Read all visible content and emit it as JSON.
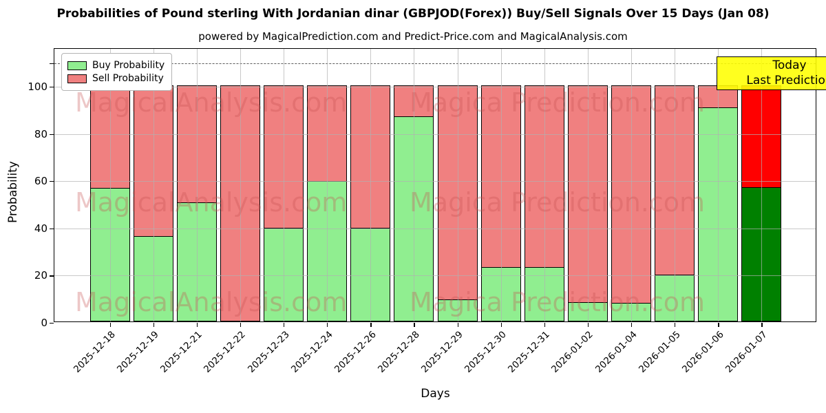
{
  "title": "Probabilities of Pound sterling With Jordanian dinar (GBPJOD(Forex)) Buy/Sell Signals Over 15 Days (Jan 08)",
  "subtitle": "powered by MagicalPrediction.com and Predict-Price.com and MagicalAnalysis.com",
  "legend": {
    "items": [
      {
        "label": "Buy Probability",
        "color": "#90EE90"
      },
      {
        "label": "Sell Probability",
        "color": "#F08080"
      }
    ]
  },
  "annotation_box": {
    "line1": "Today",
    "line2": "Last Prediction",
    "bg_color": "#FFFF00"
  },
  "watermarks": {
    "left_text": "MagicalAnalysis.com",
    "right_text": "Magica Prediction.com",
    "color": "#C75050"
  },
  "axes": {
    "xlabel": "Days",
    "ylabel": "Probability"
  },
  "colors": {
    "buy": "#90EE90",
    "sell": "#F08080",
    "today_buy": "#008000",
    "today_sell": "#FF0000",
    "bar_edge": "#000000",
    "grid": "#B0B0B0"
  },
  "chart_data": {
    "type": "bar",
    "stacked": true,
    "categories": [
      "2025-12-18",
      "2025-12-19",
      "2025-12-21",
      "2025-12-22",
      "2025-12-23",
      "2025-12-24",
      "2025-12-26",
      "2025-12-28",
      "2025-12-29",
      "2025-12-30",
      "2025-12-31",
      "2026-01-02",
      "2026-01-04",
      "2026-01-05",
      "2026-01-06",
      "2026-01-07"
    ],
    "series": [
      {
        "name": "Buy Probability",
        "values": [
          56.5,
          36,
          50.5,
          0,
          39.5,
          59.5,
          39.5,
          87,
          9,
          23,
          23,
          8,
          7.5,
          19.5,
          91,
          57
        ]
      },
      {
        "name": "Sell Probability",
        "values": [
          43.5,
          64,
          49.5,
          100,
          60.5,
          40.5,
          60.5,
          13,
          91,
          77,
          77,
          92,
          92.5,
          80.5,
          9,
          43
        ]
      }
    ],
    "today_bar_category": "2026-01-07",
    "title": "Probabilities of Pound sterling With Jordanian dinar (GBPJOD(Forex)) Buy/Sell Signals Over 15 Days (Jan 08)",
    "xlabel": "Days",
    "ylabel": "Probability",
    "ylim": [
      0,
      116
    ],
    "yticks": [
      0,
      20,
      40,
      60,
      80,
      100
    ],
    "dashed_line_y": 110,
    "grid": true,
    "legend_position": "upper left"
  }
}
